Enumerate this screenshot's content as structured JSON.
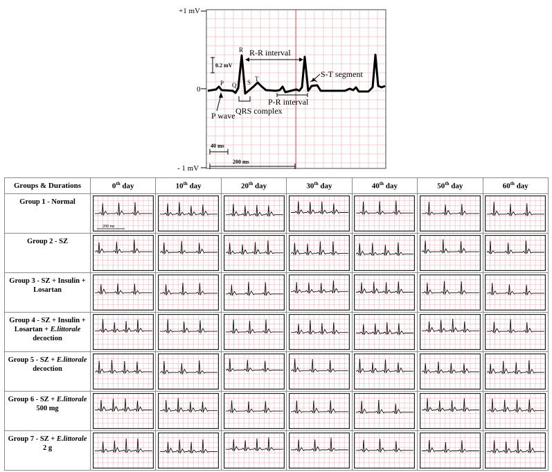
{
  "legend": {
    "ticks": {
      "top": "+1 mV",
      "zero": "0",
      "bottom": "- 1 mV"
    },
    "waves": {
      "p": "P",
      "q": "Q",
      "r": "R",
      "s": "S",
      "t": "T"
    },
    "labels": {
      "rr_interval": "R-R interval",
      "scale_02mv": "0.2 mV",
      "st_segment": "S-T segment",
      "pr_interval": "P-R interval",
      "qrs_complex": "QRS complex",
      "p_wave": "P wave",
      "ms40": "40 ms",
      "ms200": "200 ms"
    },
    "grid_color": "#e7a0a8"
  },
  "table": {
    "header": {
      "groups": "Groups & Durations",
      "days": [
        {
          "num": "0",
          "sup": "th",
          "word": " day"
        },
        {
          "num": "10",
          "sup": "th",
          "word": " day"
        },
        {
          "num": "20",
          "sup": "th",
          "word": " day"
        },
        {
          "num": "30",
          "sup": "th",
          "word": " day"
        },
        {
          "num": "40",
          "sup": "th",
          "word": " day"
        },
        {
          "num": "50",
          "sup": "th",
          "word": " day"
        },
        {
          "num": "60",
          "sup": "th",
          "word": " day"
        }
      ]
    },
    "groups": [
      {
        "parts": [
          {
            "t": "Group 1 - Normal",
            "i": false
          }
        ]
      },
      {
        "parts": [
          {
            "t": "Group 2 - SZ",
            "i": false
          }
        ]
      },
      {
        "parts": [
          {
            "t": "Group 3 - SZ + Insulin + Losartan",
            "i": false
          }
        ]
      },
      {
        "parts": [
          {
            "t": "Group 4 - SZ + Insulin + Losartan + ",
            "i": false
          },
          {
            "t": "E.littorale",
            "i": true
          },
          {
            "t": " decoction",
            "i": false
          }
        ]
      },
      {
        "parts": [
          {
            "t": "Group 5 - SZ + ",
            "i": false
          },
          {
            "t": "E.littorale",
            "i": true
          },
          {
            "t": " decoction",
            "i": false
          }
        ]
      },
      {
        "parts": [
          {
            "t": "Group 6 - SZ + ",
            "i": false
          },
          {
            "t": "E.littorale",
            "i": true
          },
          {
            "t": " 500 mg",
            "i": false
          }
        ]
      },
      {
        "parts": [
          {
            "t": "Group 7 - SZ + ",
            "i": false
          },
          {
            "t": "E.littorale",
            "i": true
          },
          {
            "t": " 2 g",
            "i": false
          }
        ]
      }
    ],
    "scale_label": "200 ms",
    "grid_color": "#f0a9b0"
  }
}
